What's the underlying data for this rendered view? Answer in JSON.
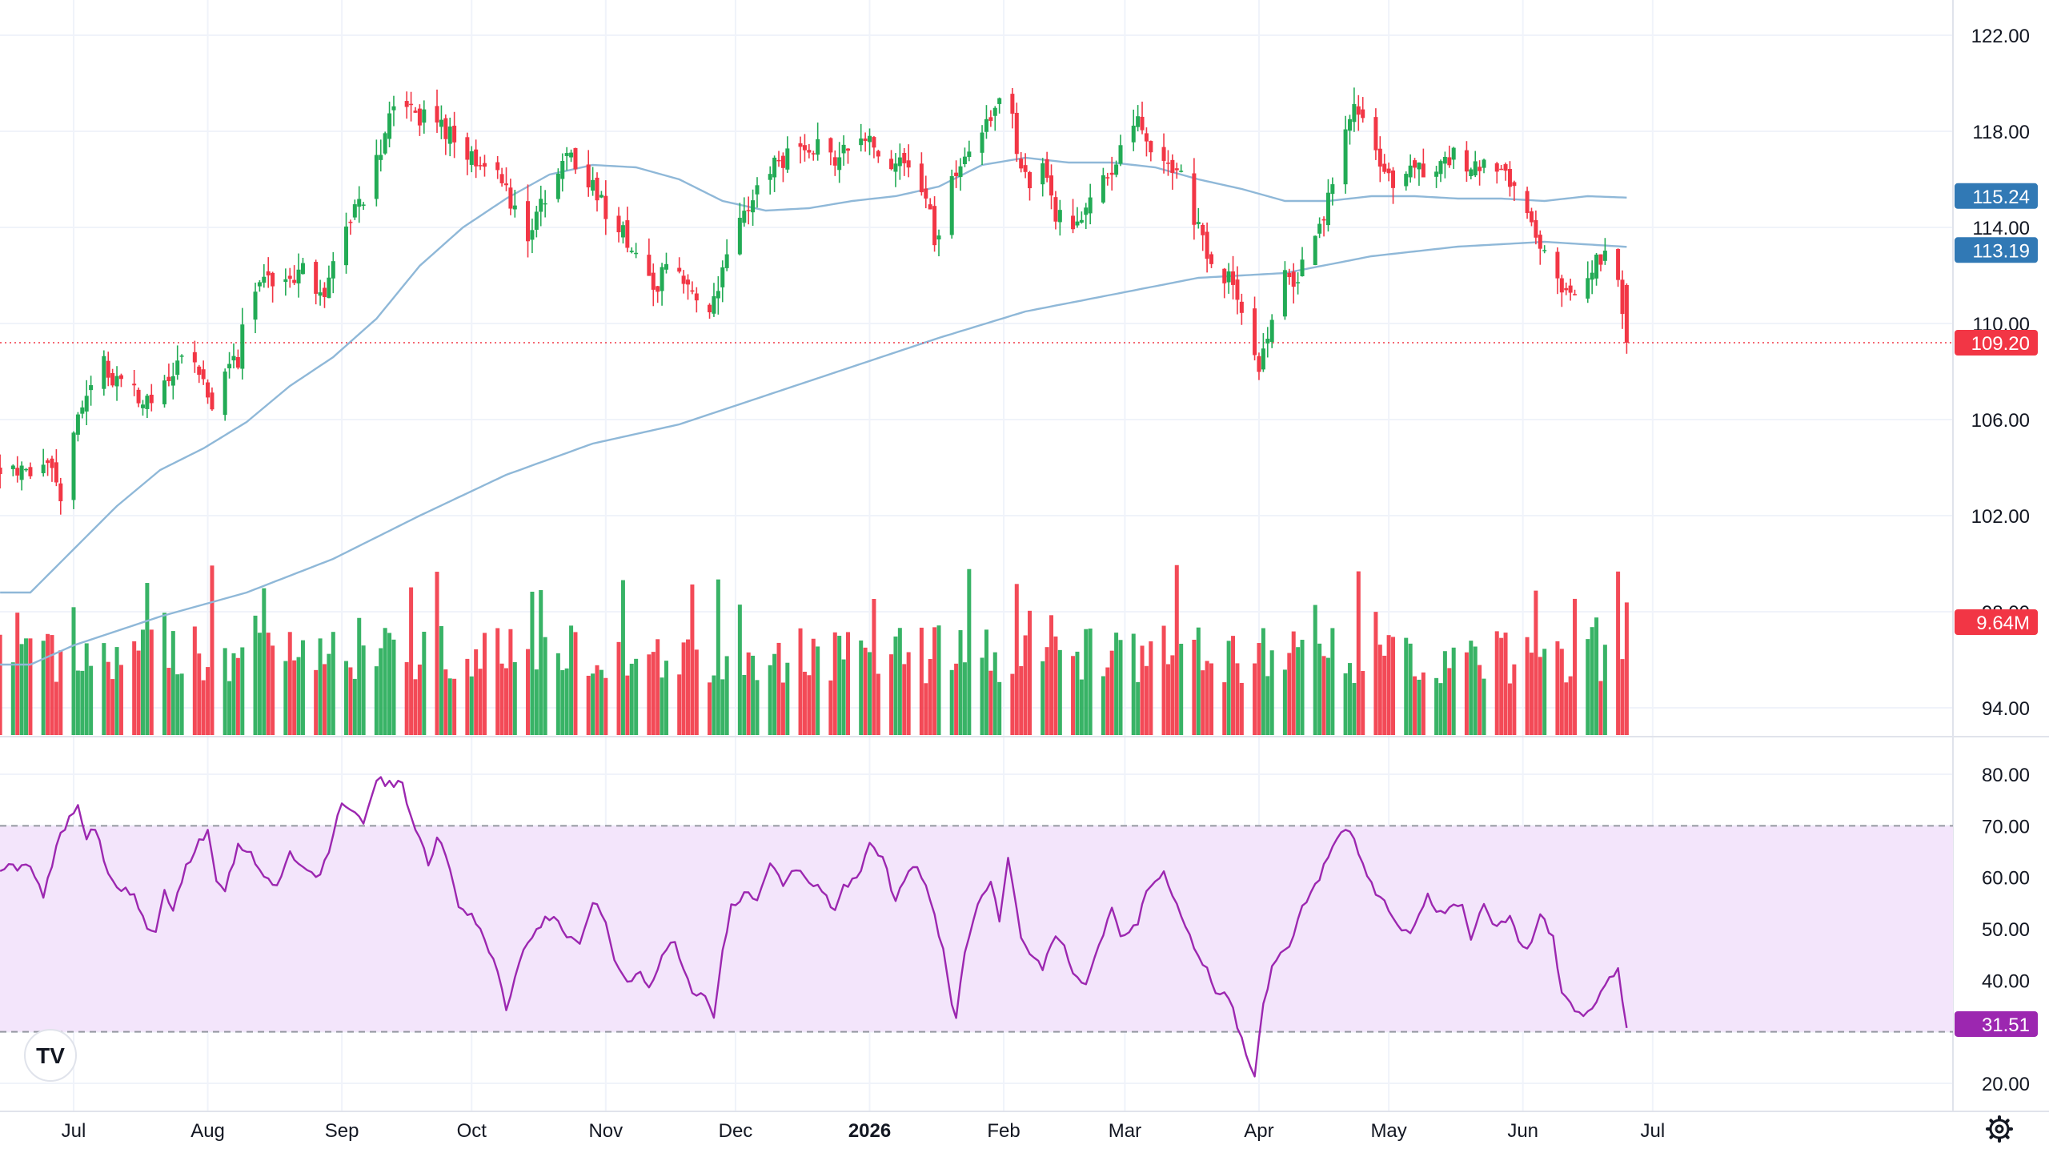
{
  "chart_data": {
    "type": "candlestick",
    "price_axis": {
      "ticks": [
        94,
        98,
        102,
        106,
        110,
        114,
        118,
        122
      ],
      "tick_labels": [
        "94.00",
        "98.00",
        "102.00",
        "106.00",
        "110.00",
        "114.00",
        "118.00",
        "122.00"
      ],
      "range": [
        92.2,
        123.6
      ]
    },
    "rsi_axis": {
      "ticks": [
        20,
        30,
        40,
        50,
        60,
        70,
        80
      ],
      "tick_labels": [
        "20.00",
        "",
        "40.00",
        "50.00",
        "60.00",
        "70.00",
        "80.00"
      ],
      "range": [
        17,
        85
      ],
      "band": [
        30,
        70
      ]
    },
    "x_axis": {
      "labels": [
        {
          "text": "Jul",
          "day": 0,
          "bold": false
        },
        {
          "text": "Aug",
          "day": 31,
          "bold": false
        },
        {
          "text": "Sep",
          "day": 62,
          "bold": false
        },
        {
          "text": "Oct",
          "day": 92,
          "bold": false
        },
        {
          "text": "Nov",
          "day": 123,
          "bold": false
        },
        {
          "text": "Dec",
          "day": 153,
          "bold": false
        },
        {
          "text": "2026",
          "day": 184,
          "bold": true
        },
        {
          "text": "Feb",
          "day": 215,
          "bold": false
        },
        {
          "text": "Mar",
          "day": 243,
          "bold": false
        },
        {
          "text": "Apr",
          "day": 274,
          "bold": false
        },
        {
          "text": "May",
          "day": 304,
          "bold": false
        },
        {
          "text": "Jun",
          "day": 335,
          "bold": false
        },
        {
          "text": "Jul",
          "day": 365,
          "bold": false
        }
      ]
    },
    "price_close_anchors": [
      [
        -10,
        103.8
      ],
      [
        -6,
        104.6
      ],
      [
        -3,
        102.6
      ],
      [
        0,
        105.8
      ],
      [
        3,
        107.2
      ],
      [
        6,
        108.4
      ],
      [
        10,
        107.6
      ],
      [
        14,
        107.0
      ],
      [
        18,
        106.6
      ],
      [
        22,
        107.4
      ],
      [
        26,
        108.8
      ],
      [
        28,
        108.0
      ],
      [
        30,
        107.4
      ],
      [
        32,
        106.8
      ],
      [
        34,
        107.6
      ],
      [
        38,
        108.6
      ],
      [
        40,
        110.5
      ],
      [
        44,
        112.0
      ],
      [
        47,
        111.0
      ],
      [
        50,
        111.8
      ],
      [
        54,
        112.2
      ],
      [
        57,
        111.0
      ],
      [
        62,
        113.6
      ],
      [
        66,
        115.0
      ],
      [
        70,
        116.6
      ],
      [
        72,
        118.2
      ],
      [
        76,
        119.2
      ],
      [
        79,
        118.8
      ],
      [
        83,
        118.3
      ],
      [
        87,
        117.8
      ],
      [
        90,
        117.1
      ],
      [
        94,
        116.9
      ],
      [
        98,
        116.4
      ],
      [
        102,
        114.6
      ],
      [
        104,
        113.2
      ],
      [
        107,
        114.8
      ],
      [
        111,
        115.8
      ],
      [
        115,
        117.0
      ],
      [
        117,
        116.6
      ],
      [
        120,
        115.8
      ],
      [
        123,
        114.6
      ],
      [
        126,
        113.8
      ],
      [
        130,
        113.2
      ],
      [
        134,
        111.2
      ],
      [
        138,
        112.6
      ],
      [
        141,
        112.0
      ],
      [
        144,
        111.4
      ],
      [
        146,
        110.4
      ],
      [
        150,
        112.0
      ],
      [
        153,
        113.8
      ],
      [
        156,
        114.8
      ],
      [
        160,
        116.2
      ],
      [
        164,
        116.8
      ],
      [
        168,
        117.0
      ],
      [
        172,
        117.4
      ],
      [
        176,
        117.0
      ],
      [
        180,
        117.8
      ],
      [
        184,
        117.4
      ],
      [
        188,
        117.0
      ],
      [
        190,
        116.6
      ],
      [
        194,
        116.2
      ],
      [
        197,
        115.4
      ],
      [
        199,
        113.4
      ],
      [
        201,
        114.8
      ],
      [
        204,
        116.2
      ],
      [
        208,
        117.3
      ],
      [
        212,
        118.7
      ],
      [
        215,
        119.6
      ],
      [
        217,
        118.4
      ],
      [
        219,
        116.6
      ],
      [
        222,
        115.6
      ],
      [
        224,
        116.4
      ],
      [
        226,
        115.0
      ],
      [
        229,
        114.0
      ],
      [
        233,
        114.6
      ],
      [
        236,
        115.8
      ],
      [
        240,
        116.6
      ],
      [
        243,
        117.2
      ],
      [
        246,
        118.4
      ],
      [
        249,
        117.4
      ],
      [
        252,
        117.0
      ],
      [
        255,
        116.4
      ],
      [
        258,
        115.0
      ],
      [
        261,
        113.6
      ],
      [
        264,
        112.2
      ],
      [
        267,
        111.8
      ],
      [
        270,
        110.6
      ],
      [
        272,
        109.4
      ],
      [
        274,
        107.6
      ],
      [
        276,
        109.6
      ],
      [
        278,
        111.2
      ],
      [
        280,
        111.8
      ],
      [
        282,
        111.4
      ],
      [
        285,
        113.2
      ],
      [
        288,
        114.2
      ],
      [
        291,
        115.8
      ],
      [
        294,
        118.2
      ],
      [
        296,
        118.9
      ],
      [
        299,
        118.1
      ],
      [
        302,
        116.8
      ],
      [
        305,
        115.6
      ],
      [
        308,
        116.0
      ],
      [
        311,
        116.4
      ],
      [
        314,
        116.0
      ],
      [
        317,
        116.8
      ],
      [
        320,
        117.4
      ],
      [
        323,
        116.2
      ],
      [
        326,
        117.0
      ],
      [
        329,
        116.4
      ],
      [
        332,
        116.0
      ],
      [
        335,
        115.4
      ],
      [
        337,
        114.6
      ],
      [
        339,
        113.4
      ],
      [
        341,
        112.8
      ],
      [
        344,
        111.2
      ],
      [
        347,
        111.0
      ],
      [
        350,
        111.6
      ],
      [
        352,
        112.6
      ],
      [
        355,
        112.6
      ],
      [
        357,
        112.0
      ],
      [
        359,
        109.2
      ]
    ],
    "ma_short": [
      [
        -10,
        98.8
      ],
      [
        0,
        100.6
      ],
      [
        10,
        102.4
      ],
      [
        20,
        103.9
      ],
      [
        30,
        104.8
      ],
      [
        40,
        105.9
      ],
      [
        50,
        107.4
      ],
      [
        60,
        108.6
      ],
      [
        70,
        110.2
      ],
      [
        80,
        112.4
      ],
      [
        90,
        114.0
      ],
      [
        100,
        115.2
      ],
      [
        110,
        116.2
      ],
      [
        120,
        116.6
      ],
      [
        130,
        116.5
      ],
      [
        140,
        116.0
      ],
      [
        150,
        115.1
      ],
      [
        160,
        114.7
      ],
      [
        170,
        114.8
      ],
      [
        180,
        115.1
      ],
      [
        190,
        115.3
      ],
      [
        200,
        115.7
      ],
      [
        210,
        116.6
      ],
      [
        220,
        116.9
      ],
      [
        230,
        116.7
      ],
      [
        240,
        116.7
      ],
      [
        250,
        116.5
      ],
      [
        260,
        116.0
      ],
      [
        270,
        115.6
      ],
      [
        280,
        115.1
      ],
      [
        290,
        115.1
      ],
      [
        300,
        115.3
      ],
      [
        310,
        115.3
      ],
      [
        320,
        115.2
      ],
      [
        330,
        115.2
      ],
      [
        340,
        115.1
      ],
      [
        350,
        115.3
      ],
      [
        359,
        115.24
      ]
    ],
    "ma_long": [
      [
        -10,
        95.8
      ],
      [
        0,
        96.6
      ],
      [
        20,
        97.8
      ],
      [
        40,
        98.8
      ],
      [
        60,
        100.2
      ],
      [
        80,
        102.0
      ],
      [
        100,
        103.7
      ],
      [
        120,
        105.0
      ],
      [
        140,
        105.8
      ],
      [
        160,
        107.0
      ],
      [
        180,
        108.2
      ],
      [
        200,
        109.4
      ],
      [
        220,
        110.5
      ],
      [
        240,
        111.2
      ],
      [
        260,
        111.9
      ],
      [
        280,
        112.1
      ],
      [
        300,
        112.8
      ],
      [
        320,
        113.2
      ],
      [
        340,
        113.4
      ],
      [
        359,
        113.19
      ]
    ],
    "rsi_anchors": [
      [
        -10,
        62
      ],
      [
        -7,
        56
      ],
      [
        -4,
        66
      ],
      [
        -1,
        72
      ],
      [
        1,
        74
      ],
      [
        3,
        68
      ],
      [
        5,
        70
      ],
      [
        8,
        60
      ],
      [
        11,
        58
      ],
      [
        14,
        56
      ],
      [
        17,
        50
      ],
      [
        19,
        49
      ],
      [
        21,
        57
      ],
      [
        23,
        54
      ],
      [
        26,
        62
      ],
      [
        29,
        67
      ],
      [
        31,
        69
      ],
      [
        33,
        60
      ],
      [
        35,
        58
      ],
      [
        38,
        66
      ],
      [
        41,
        65
      ],
      [
        44,
        60
      ],
      [
        47,
        58
      ],
      [
        50,
        65
      ],
      [
        53,
        62
      ],
      [
        56,
        60
      ],
      [
        59,
        64
      ],
      [
        62,
        75
      ],
      [
        65,
        73
      ],
      [
        67,
        70
      ],
      [
        70,
        79
      ],
      [
        73,
        78
      ],
      [
        76,
        78
      ],
      [
        78,
        72
      ],
      [
        80,
        68
      ],
      [
        82,
        63
      ],
      [
        84,
        67
      ],
      [
        86,
        65
      ],
      [
        89,
        54
      ],
      [
        92,
        53
      ],
      [
        95,
        48
      ],
      [
        98,
        42
      ],
      [
        100,
        34
      ],
      [
        102,
        41
      ],
      [
        105,
        48
      ],
      [
        108,
        51
      ],
      [
        111,
        53
      ],
      [
        114,
        49
      ],
      [
        117,
        47
      ],
      [
        120,
        55
      ],
      [
        123,
        52
      ],
      [
        125,
        44
      ],
      [
        128,
        39
      ],
      [
        131,
        42
      ],
      [
        133,
        38
      ],
      [
        136,
        45
      ],
      [
        139,
        48
      ],
      [
        141,
        42
      ],
      [
        143,
        38
      ],
      [
        146,
        37
      ],
      [
        148,
        33
      ],
      [
        150,
        46
      ],
      [
        152,
        54
      ],
      [
        155,
        57
      ],
      [
        158,
        56
      ],
      [
        161,
        63
      ],
      [
        164,
        58
      ],
      [
        167,
        62
      ],
      [
        170,
        59
      ],
      [
        173,
        58
      ],
      [
        176,
        53
      ],
      [
        178,
        58
      ],
      [
        181,
        60
      ],
      [
        184,
        66
      ],
      [
        187,
        64
      ],
      [
        190,
        55
      ],
      [
        192,
        60
      ],
      [
        195,
        62
      ],
      [
        198,
        56
      ],
      [
        201,
        46
      ],
      [
        203,
        36
      ],
      [
        204,
        32
      ],
      [
        206,
        46
      ],
      [
        209,
        55
      ],
      [
        212,
        59
      ],
      [
        214,
        52
      ],
      [
        216,
        64
      ],
      [
        219,
        48
      ],
      [
        222,
        44
      ],
      [
        224,
        42
      ],
      [
        227,
        49
      ],
      [
        229,
        46
      ],
      [
        231,
        41
      ],
      [
        234,
        40
      ],
      [
        237,
        47
      ],
      [
        240,
        54
      ],
      [
        242,
        49
      ],
      [
        244,
        50
      ],
      [
        246,
        51
      ],
      [
        248,
        57
      ],
      [
        250,
        59
      ],
      [
        252,
        61
      ],
      [
        254,
        57
      ],
      [
        257,
        50
      ],
      [
        260,
        45
      ],
      [
        262,
        42
      ],
      [
        264,
        38
      ],
      [
        267,
        37
      ],
      [
        269,
        31
      ],
      [
        271,
        26
      ],
      [
        273,
        22
      ],
      [
        275,
        35
      ],
      [
        277,
        42
      ],
      [
        279,
        45
      ],
      [
        281,
        46
      ],
      [
        284,
        54
      ],
      [
        287,
        58
      ],
      [
        290,
        64
      ],
      [
        293,
        68
      ],
      [
        295,
        69
      ],
      [
        298,
        62
      ],
      [
        301,
        57
      ],
      [
        303,
        55
      ],
      [
        305,
        52
      ],
      [
        308,
        49
      ],
      [
        310,
        50
      ],
      [
        313,
        57
      ],
      [
        315,
        53
      ],
      [
        318,
        54
      ],
      [
        321,
        55
      ],
      [
        323,
        48
      ],
      [
        326,
        55
      ],
      [
        329,
        50
      ],
      [
        332,
        52
      ],
      [
        335,
        46
      ],
      [
        337,
        47
      ],
      [
        339,
        53
      ],
      [
        342,
        48
      ],
      [
        344,
        38
      ],
      [
        346,
        35
      ],
      [
        349,
        33
      ],
      [
        352,
        36
      ],
      [
        355,
        40
      ],
      [
        357,
        42
      ],
      [
        359,
        31.51
      ]
    ],
    "volume": {
      "max_label": "9.64M",
      "max_value": 9.64,
      "seed": 17
    },
    "price_badges": [
      {
        "label": "115.24",
        "value": 115.24,
        "color": "#3179b5"
      },
      {
        "label": "113.19",
        "value": 113.19,
        "color": "#3179b5"
      },
      {
        "label": "109.20",
        "value": 109.2,
        "color": "#f23645"
      }
    ],
    "rsi_badge": {
      "label": "31.51",
      "value": 31.51,
      "color": "#9c27b0"
    },
    "colors": {
      "up": "#22ab55",
      "down": "#f23645",
      "ma": "#8fb8d8",
      "rsi": "#9c27b0",
      "rsi_band": "#f3e5fb",
      "grid": "#f0f3fa"
    },
    "logo_text": "TV",
    "settings_icon": "gear-icon"
  }
}
